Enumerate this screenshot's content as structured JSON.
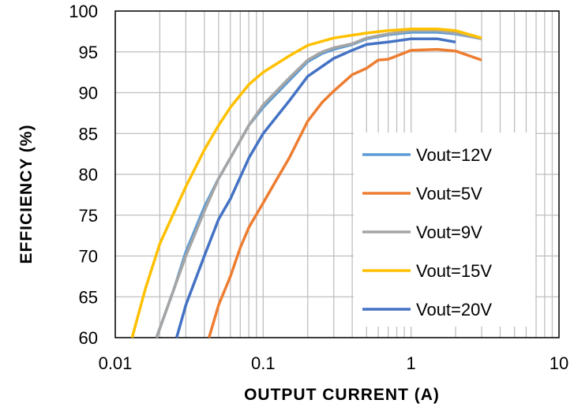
{
  "chart_data": {
    "type": "line",
    "xlabel": "OUTPUT  CURRENT  (A)",
    "ylabel": "EFFICIENCY   (%)",
    "xscale": "log",
    "xlim": [
      0.01,
      10
    ],
    "ylim": [
      60,
      100
    ],
    "x_ticks": [
      "0.01",
      "0.1",
      "1",
      "10"
    ],
    "y_ticks": [
      "60",
      "65",
      "70",
      "75",
      "80",
      "85",
      "90",
      "95",
      "100"
    ],
    "grid": true,
    "legend_position": "lower-right",
    "series": [
      {
        "name": "Vout=12V",
        "color": "#5B9BD5",
        "points": [
          [
            0.019,
            60
          ],
          [
            0.025,
            66
          ],
          [
            0.03,
            70.5
          ],
          [
            0.04,
            76
          ],
          [
            0.05,
            79.5
          ],
          [
            0.06,
            82
          ],
          [
            0.08,
            86
          ],
          [
            0.1,
            88.2
          ],
          [
            0.15,
            91.5
          ],
          [
            0.2,
            93.8
          ],
          [
            0.25,
            94.8
          ],
          [
            0.3,
            95.3
          ],
          [
            0.4,
            95.9
          ],
          [
            0.5,
            96.6
          ],
          [
            0.7,
            97.1
          ],
          [
            1,
            97.4
          ],
          [
            1.5,
            97.4
          ],
          [
            2,
            97.2
          ],
          [
            3,
            96.6
          ]
        ]
      },
      {
        "name": "Vout=5V",
        "color": "#ED7D31",
        "points": [
          [
            0.043,
            60
          ],
          [
            0.05,
            64
          ],
          [
            0.06,
            67.5
          ],
          [
            0.07,
            71
          ],
          [
            0.08,
            73.5
          ],
          [
            0.1,
            76.5
          ],
          [
            0.12,
            79
          ],
          [
            0.15,
            82
          ],
          [
            0.2,
            86.5
          ],
          [
            0.25,
            88.8
          ],
          [
            0.3,
            90.2
          ],
          [
            0.4,
            92.2
          ],
          [
            0.5,
            93
          ],
          [
            0.6,
            94
          ],
          [
            0.7,
            94.1
          ],
          [
            0.8,
            94.5
          ],
          [
            1,
            95.2
          ],
          [
            1.5,
            95.3
          ],
          [
            2,
            95.1
          ],
          [
            3,
            94
          ]
        ]
      },
      {
        "name": "Vout=9V",
        "color": "#A5A5A5",
        "points": [
          [
            0.019,
            60
          ],
          [
            0.025,
            66
          ],
          [
            0.03,
            70
          ],
          [
            0.04,
            75.5
          ],
          [
            0.05,
            79.5
          ],
          [
            0.06,
            82
          ],
          [
            0.08,
            86
          ],
          [
            0.1,
            88.5
          ],
          [
            0.15,
            91.8
          ],
          [
            0.2,
            94
          ],
          [
            0.25,
            95
          ],
          [
            0.3,
            95.5
          ],
          [
            0.4,
            96
          ],
          [
            0.5,
            96.7
          ],
          [
            0.7,
            97.2
          ],
          [
            1,
            97.6
          ],
          [
            1.5,
            97.6
          ],
          [
            2,
            97.3
          ],
          [
            3,
            96.6
          ]
        ]
      },
      {
        "name": "Vout=15V",
        "color": "#FFC000",
        "points": [
          [
            0.013,
            60
          ],
          [
            0.016,
            66
          ],
          [
            0.02,
            71.5
          ],
          [
            0.03,
            78.5
          ],
          [
            0.04,
            83
          ],
          [
            0.05,
            86
          ],
          [
            0.06,
            88.2
          ],
          [
            0.08,
            91
          ],
          [
            0.1,
            92.5
          ],
          [
            0.15,
            94.5
          ],
          [
            0.2,
            95.8
          ],
          [
            0.3,
            96.7
          ],
          [
            0.5,
            97.3
          ],
          [
            0.7,
            97.6
          ],
          [
            1,
            97.8
          ],
          [
            1.5,
            97.8
          ],
          [
            2,
            97.6
          ],
          [
            3,
            96.7
          ]
        ]
      },
      {
        "name": "Vout=20V",
        "color": "#4472C4",
        "points": [
          [
            0.026,
            60
          ],
          [
            0.03,
            64
          ],
          [
            0.04,
            70
          ],
          [
            0.05,
            74.5
          ],
          [
            0.06,
            77
          ],
          [
            0.08,
            82
          ],
          [
            0.1,
            85
          ],
          [
            0.15,
            89
          ],
          [
            0.2,
            92
          ],
          [
            0.3,
            94.2
          ],
          [
            0.4,
            95.2
          ],
          [
            0.5,
            95.9
          ],
          [
            0.7,
            96.2
          ],
          [
            1,
            96.6
          ],
          [
            1.5,
            96.6
          ],
          [
            2,
            96.2
          ]
        ]
      }
    ]
  }
}
